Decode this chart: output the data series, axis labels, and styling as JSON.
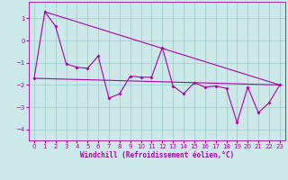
{
  "xlabel": "Windchill (Refroidissement éolien,°C)",
  "background_color": "#cce8e8",
  "grid_color": "#99cccc",
  "line_color": "#aa00aa",
  "xlim_min": -0.5,
  "xlim_max": 23.5,
  "ylim_min": -4.5,
  "ylim_max": 1.75,
  "yticks": [
    1,
    0,
    -1,
    -2,
    -3,
    -4
  ],
  "xticks": [
    0,
    1,
    2,
    3,
    4,
    5,
    6,
    7,
    8,
    9,
    10,
    11,
    12,
    13,
    14,
    15,
    16,
    17,
    18,
    19,
    20,
    21,
    22,
    23
  ],
  "series_x": [
    0,
    1,
    2,
    3,
    4,
    5,
    6,
    7,
    8,
    9,
    10,
    11,
    12,
    13,
    14,
    15,
    16,
    17,
    18,
    19,
    20,
    21,
    22,
    23
  ],
  "series_y": [
    -1.7,
    1.3,
    0.65,
    -1.05,
    -1.2,
    -1.25,
    -0.7,
    -2.6,
    -2.4,
    -1.6,
    -1.65,
    -1.65,
    -0.3,
    -2.05,
    -2.4,
    -1.9,
    -2.1,
    -2.05,
    -2.15,
    -3.7,
    -2.1,
    -3.25,
    -2.8,
    -2.0
  ],
  "trend1_x": [
    0,
    23
  ],
  "trend1_y": [
    -1.7,
    -2.0
  ],
  "trend2_x": [
    1,
    23
  ],
  "trend2_y": [
    1.3,
    -2.0
  ]
}
